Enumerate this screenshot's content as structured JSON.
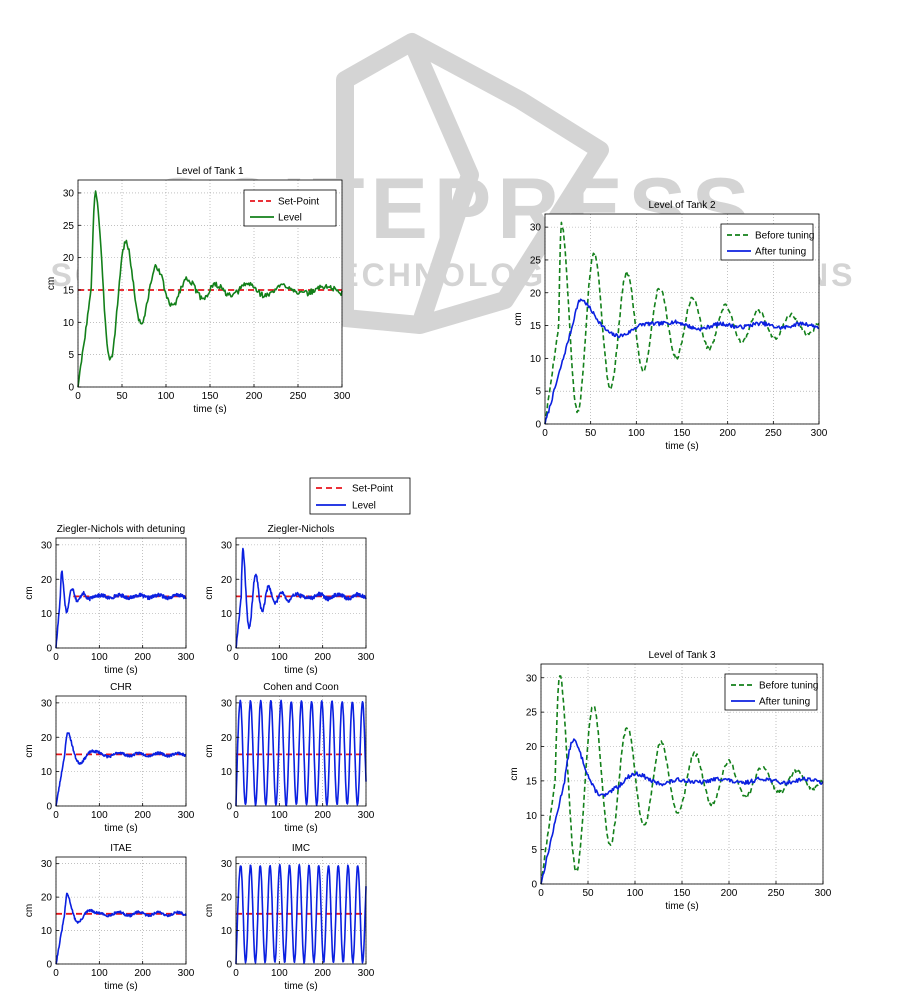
{
  "watermark": {
    "line1": "SCITEPRESS",
    "line2": "SCIENCE AND TECHNOLOGY PUBLICATIONS"
  },
  "charts": [
    {
      "type": "line",
      "title": "Level of Tank 1",
      "xlabel": "time (s)",
      "ylabel": "cm",
      "xlim": [
        0,
        300
      ],
      "ylim": [
        0,
        32
      ],
      "xticks": [
        0,
        50,
        100,
        150,
        200,
        250,
        300
      ],
      "yticks": [
        0,
        5,
        10,
        15,
        20,
        25,
        30
      ],
      "grid": true,
      "legend": "top-right",
      "series": [
        {
          "name": "Set-Point",
          "style": "dash",
          "color": "#e8141c",
          "constant": 15,
          "x_range": [
            0,
            300
          ]
        },
        {
          "name": "Level",
          "style": "solid",
          "color": "#13801a",
          "model": {
            "rise_time": 15,
            "peak_time": 20,
            "period": 35,
            "peak": 30.2,
            "decay": 48,
            "noise": 0.45,
            "tail_x": 150,
            "tail_amp": 0.6,
            "seed": 3
          }
        }
      ]
    },
    {
      "type": "line",
      "title": "Level of Tank 2",
      "xlabel": "time (s)",
      "ylabel": "cm",
      "xlim": [
        0,
        300
      ],
      "ylim": [
        0,
        32
      ],
      "xticks": [
        0,
        50,
        100,
        150,
        200,
        250,
        300
      ],
      "yticks": [
        0,
        5,
        10,
        15,
        20,
        25,
        30
      ],
      "grid": true,
      "legend": "top-right",
      "series": [
        {
          "name": "Before tuning",
          "style": "dash",
          "color": "#13801a",
          "model": {
            "rise_time": 15,
            "peak_time": 18,
            "period": 36,
            "peak": 30.5,
            "decay": 110,
            "noise": 0.3,
            "seed": 5
          }
        },
        {
          "name": "After tuning",
          "style": "solid",
          "color": "#0b20e0",
          "model": {
            "rise_time": 30,
            "peak_time": 40,
            "period": 90,
            "peak": 19.0,
            "decay": 45,
            "noise": 0.3,
            "tail_x": 90,
            "tail_amp": 0.3,
            "seed": 7
          }
        }
      ]
    },
    {
      "type": "line",
      "title": "Level of Tank 3",
      "xlabel": "time (s)",
      "ylabel": "cm",
      "xlim": [
        0,
        300
      ],
      "ylim": [
        0,
        32
      ],
      "xticks": [
        0,
        50,
        100,
        150,
        200,
        250,
        300
      ],
      "yticks": [
        0,
        5,
        10,
        15,
        20,
        25,
        30
      ],
      "grid": true,
      "legend": "top-right",
      "series": [
        {
          "name": "Before tuning",
          "style": "dash",
          "color": "#13801a",
          "model": {
            "rise_time": 15,
            "peak_time": 20,
            "period": 36,
            "peak": 30.5,
            "decay": 105,
            "noise": 0.3,
            "seed": 11
          }
        },
        {
          "name": "After tuning",
          "style": "solid",
          "color": "#0b20e0",
          "model": {
            "rise_time": 25,
            "peak_time": 35,
            "period": 70,
            "peak": 21.0,
            "decay": 32,
            "noise": 0.3,
            "tail_x": 80,
            "tail_amp": 0.3,
            "seed": 13
          }
        }
      ]
    },
    {
      "type": "line",
      "title": "Ziegler-Nichols with detuning",
      "xlabel": "time (s)",
      "ylabel": "cm",
      "xlim": [
        0,
        300
      ],
      "ylim": [
        0,
        32
      ],
      "xticks": [
        0,
        100,
        200,
        300
      ],
      "yticks": [
        0,
        10,
        20,
        30
      ],
      "grid": true,
      "series": [
        {
          "name": "Set-Point",
          "style": "dash",
          "color": "#e8141c",
          "constant": 15,
          "x_range": [
            40,
            300
          ]
        },
        {
          "name": "Level",
          "style": "solid",
          "color": "#0b20e0",
          "model": {
            "rise_time": 10,
            "peak_time": 13,
            "period": 25,
            "peak": 22.5,
            "decay": 22,
            "noise": 0.5,
            "tail_x": 60,
            "tail_amp": 0.4,
            "seed": 17
          }
        }
      ]
    },
    {
      "type": "line",
      "title": "Ziegler-Nichols",
      "xlabel": "time (s)",
      "ylabel": "cm",
      "xlim": [
        0,
        300
      ],
      "ylim": [
        0,
        32
      ],
      "xticks": [
        0,
        100,
        200,
        300
      ],
      "yticks": [
        0,
        10,
        20,
        30
      ],
      "grid": true,
      "series": [
        {
          "name": "Set-Point",
          "style": "dash",
          "color": "#e8141c",
          "constant": 15,
          "x_range": [
            0,
            300
          ]
        },
        {
          "name": "Level",
          "style": "solid",
          "color": "#0b20e0",
          "model": {
            "rise_time": 12,
            "peak_time": 16,
            "period": 30,
            "peak": 28.8,
            "decay": 38,
            "noise": 0.55,
            "tail_x": 110,
            "tail_amp": 0.6,
            "seed": 19
          }
        }
      ]
    },
    {
      "type": "line",
      "title": "CHR",
      "xlabel": "time (s)",
      "ylabel": "cm",
      "xlim": [
        0,
        300
      ],
      "ylim": [
        0,
        32
      ],
      "xticks": [
        0,
        100,
        200,
        300
      ],
      "yticks": [
        0,
        10,
        20,
        30
      ],
      "grid": true,
      "series": [
        {
          "name": "Set-Point",
          "style": "dash",
          "color": "#e8141c",
          "constant": 15,
          "x_range": [
            0,
            300
          ]
        },
        {
          "name": "Level",
          "style": "solid",
          "color": "#0b20e0",
          "model": {
            "rise_time": 20,
            "peak_time": 28,
            "period": 60,
            "peak": 21.5,
            "decay": 30,
            "noise": 0.35,
            "tail_x": 90,
            "tail_amp": 0.4,
            "seed": 23
          }
        }
      ]
    },
    {
      "type": "line",
      "title": "Cohen and Coon",
      "xlabel": "time (s)",
      "ylabel": "cm",
      "xlim": [
        0,
        300
      ],
      "ylim": [
        0,
        32
      ],
      "xticks": [
        0,
        100,
        200,
        300
      ],
      "yticks": [
        0,
        10,
        20,
        30
      ],
      "grid": true,
      "series": [
        {
          "name": "Set-Point",
          "style": "dash",
          "color": "#e8141c",
          "constant": 15,
          "x_range": [
            0,
            300
          ]
        },
        {
          "name": "Level",
          "style": "solid",
          "color": "#0b20e0",
          "model": {
            "sustained": true,
            "peak_time": 10,
            "period": 23.5,
            "peak": 30.5,
            "trough": 0.3,
            "noise": 0.25,
            "seed": 29
          }
        }
      ]
    },
    {
      "type": "line",
      "title": "ITAE",
      "xlabel": "time (s)",
      "ylabel": "cm",
      "xlim": [
        0,
        300
      ],
      "ylim": [
        0,
        32
      ],
      "xticks": [
        0,
        100,
        200,
        300
      ],
      "yticks": [
        0,
        10,
        20,
        30
      ],
      "grid": true,
      "series": [
        {
          "name": "Set-Point",
          "style": "dash",
          "color": "#e8141c",
          "constant": 15,
          "x_range": [
            0,
            300
          ]
        },
        {
          "name": "Level",
          "style": "solid",
          "color": "#0b20e0",
          "model": {
            "rise_time": 20,
            "peak_time": 26,
            "period": 55,
            "peak": 21.0,
            "decay": 30,
            "noise": 0.35,
            "tail_x": 85,
            "tail_amp": 0.5,
            "seed": 31
          }
        }
      ]
    },
    {
      "type": "line",
      "title": "IMC",
      "xlabel": "time (s)",
      "ylabel": "cm",
      "xlim": [
        0,
        300
      ],
      "ylim": [
        0,
        32
      ],
      "xticks": [
        0,
        100,
        200,
        300
      ],
      "yticks": [
        0,
        10,
        20,
        30
      ],
      "grid": true,
      "series": [
        {
          "name": "Set-Point",
          "style": "dash",
          "color": "#e8141c",
          "constant": 15,
          "x_range": [
            0,
            300
          ]
        },
        {
          "name": "Level",
          "style": "solid",
          "color": "#0b20e0",
          "model": {
            "sustained": true,
            "peak_time": 11,
            "period": 22.5,
            "peak": 29.5,
            "trough": 0.5,
            "noise": 0.25,
            "seed": 37
          }
        }
      ]
    }
  ],
  "shared_legend": {
    "items": [
      {
        "name": "Set-Point",
        "style": "dash",
        "color": "#e8141c"
      },
      {
        "name": "Level",
        "style": "solid",
        "color": "#0b20e0"
      }
    ]
  }
}
